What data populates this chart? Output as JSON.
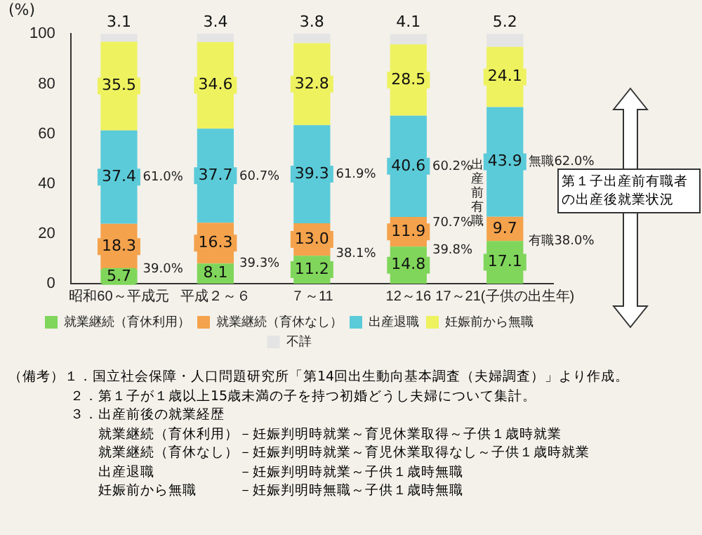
{
  "chart_data": {
    "type": "bar",
    "stacked": true,
    "ylabel": "(%)",
    "categories": [
      "昭和60～平成元",
      "平成２～６",
      "７～11",
      "12～16",
      "17～21(子供の出生年)"
    ],
    "series": [
      {
        "name": "就業継続（育休利用）",
        "color": "#7fd65a",
        "values": [
          5.7,
          8.1,
          11.2,
          14.8,
          17.1
        ],
        "value_labels": [
          "5.7",
          "8.1",
          "11.2",
          "14.8",
          "17.1"
        ]
      },
      {
        "name": "就業継続（育休なし）",
        "color": "#f5a24c",
        "values": [
          18.3,
          16.3,
          13.0,
          11.9,
          9.7
        ],
        "value_labels": [
          "18.3",
          "16.3",
          "13.0",
          "11.9",
          "9.7"
        ]
      },
      {
        "name": "出産退職",
        "color": "#5ccbd9",
        "values": [
          37.4,
          37.7,
          39.3,
          40.6,
          43.9
        ],
        "value_labels": [
          "37.4",
          "37.7",
          "39.3",
          "40.6",
          "43.9"
        ]
      },
      {
        "name": "妊娠前から無職",
        "color": "#eef25e",
        "values": [
          35.5,
          34.6,
          32.8,
          28.5,
          24.1
        ],
        "value_labels": [
          "35.5",
          "34.6",
          "32.8",
          "28.5",
          "24.1"
        ]
      },
      {
        "name": "不詳",
        "color": "#e4e4e4",
        "values": [
          3.1,
          3.4,
          3.8,
          4.1,
          5.2
        ],
        "value_labels": [
          "3.1",
          "3.4",
          "3.8",
          "4.1",
          "5.2"
        ]
      }
    ],
    "ylim": [
      0,
      100.1
    ],
    "yticks": [
      0,
      20,
      40,
      60,
      80,
      100
    ],
    "grid": false,
    "legend": "bottom",
    "annotations": [
      {
        "text": "61.0%",
        "x": "昭和60～平成元",
        "y": 42.7
      },
      {
        "text": "39.0%",
        "x": "昭和60～平成元",
        "y": 5.7
      },
      {
        "text": "60.7%",
        "x": "平成２～６",
        "y": 42.8
      },
      {
        "text": "39.3%",
        "x": "平成２～６",
        "y": 8.1
      },
      {
        "text": "61.9%",
        "x": "７～11",
        "y": 43.9
      },
      {
        "text": "38.1%",
        "x": "７～11",
        "y": 12.1
      },
      {
        "text": "60.2%",
        "x": "12～16",
        "y": 47
      },
      {
        "text": "70.7%",
        "x": "12～16",
        "y": 24.5
      },
      {
        "text": "39.8%",
        "x": "12～16",
        "y": 13.3
      },
      {
        "text": "無職62.0%",
        "x": "17～21(子供の出生年)",
        "y": 48.8
      },
      {
        "text": "有職38.0%",
        "x": "17～21(子供の出生年)",
        "y": 17.1
      },
      "第１子出産前有職者の出産後就業状況",
      "出産前有職",
      "（備考）１．国立社会保障・人口問題研究所「第14回出生動向基本調査（夫婦調査）」より作成。",
      "２．第１子が１歳以上15歳未満の子を持つ初婚どうし夫婦について集計。",
      "３．出産前後の就業経歴",
      "就業継続（育休利用）－妊娠判明時就業～育児休業取得～子供１歳時就業",
      "就業継続（育休なし）－妊娠判明時就業～育児休業取得なし～子供１歳時就業",
      "出産退職　　　　　　－妊娠判明時就業～子供１歳時無職",
      "妊娠前から無職　　　－妊娠判明時無職～子供１歳時無職"
    ]
  }
}
